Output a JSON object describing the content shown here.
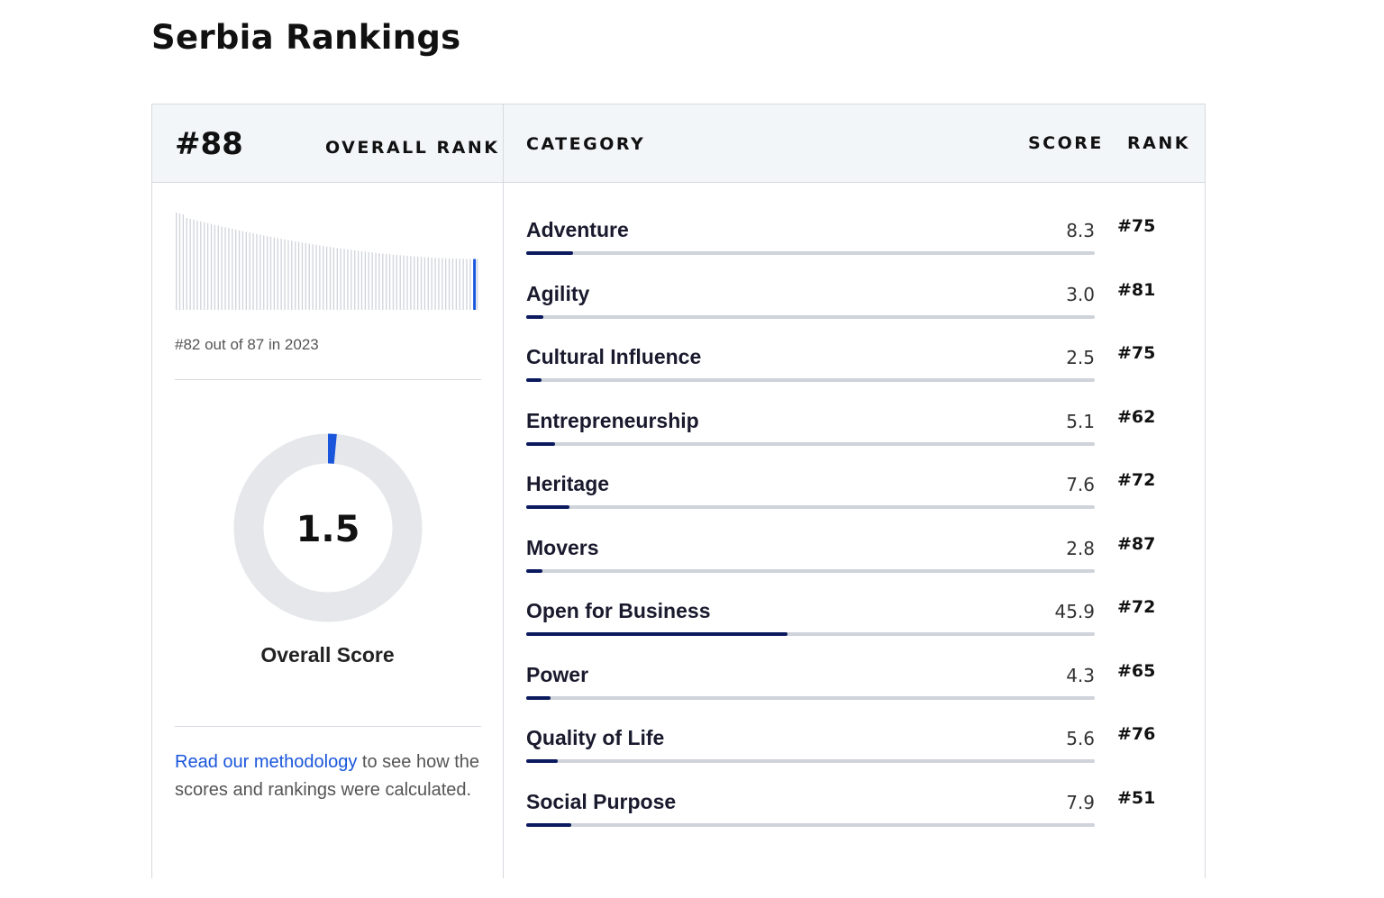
{
  "page_title": "Serbia Rankings",
  "header": {
    "overall_rank": "#88",
    "overall_rank_label": "OVERALL RANK",
    "category_label": "CATEGORY",
    "score_label": "SCORE",
    "rank_label": "RANK"
  },
  "history": {
    "caption": "#82 out of 87 in 2023",
    "total": 87,
    "highlight_position": 82,
    "highlight_color": "#1a56db",
    "bar_color": "#cfd3da"
  },
  "overall_score": {
    "value": "1.5",
    "fraction": 0.015,
    "label": "Overall Score",
    "accent": "#1a56db",
    "track": "#e5e7eb"
  },
  "methodology": {
    "link": "Read our methodology",
    "text": " to see how the scores and rankings were calculated."
  },
  "categories": [
    {
      "name": "Adventure",
      "score": "8.3",
      "rank": "#75"
    },
    {
      "name": "Agility",
      "score": "3.0",
      "rank": "#81"
    },
    {
      "name": "Cultural Influence",
      "score": "2.5",
      "rank": "#75"
    },
    {
      "name": "Entrepreneurship",
      "score": "5.1",
      "rank": "#62"
    },
    {
      "name": "Heritage",
      "score": "7.6",
      "rank": "#72"
    },
    {
      "name": "Movers",
      "score": "2.8",
      "rank": "#87"
    },
    {
      "name": "Open for Business",
      "score": "45.9",
      "rank": "#72"
    },
    {
      "name": "Power",
      "score": "4.3",
      "rank": "#65"
    },
    {
      "name": "Quality of Life",
      "score": "5.6",
      "rank": "#76"
    },
    {
      "name": "Social Purpose",
      "score": "7.9",
      "rank": "#51"
    }
  ]
}
